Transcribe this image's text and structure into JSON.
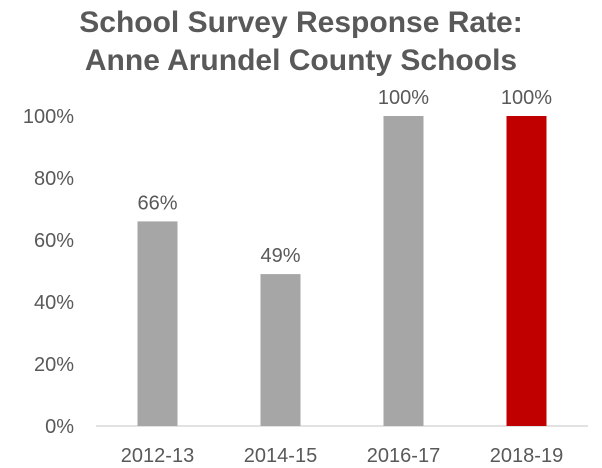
{
  "chart_data": {
    "type": "bar",
    "title": "School Survey Response Rate:",
    "subtitle": "Anne Arundel County Schools",
    "xlabel": "",
    "ylabel": "",
    "categories": [
      "2012-13",
      "2014-15",
      "2016-17",
      "2018-19"
    ],
    "values": [
      66,
      49,
      100,
      100
    ],
    "data_labels": [
      "66%",
      "49%",
      "100%",
      "100%"
    ],
    "ylim": [
      0,
      100
    ],
    "yticks": [
      0,
      20,
      40,
      60,
      80,
      100
    ],
    "ytick_labels": [
      "0%",
      "20%",
      "40%",
      "60%",
      "80%",
      "100%"
    ],
    "grid": false,
    "legend": "none",
    "colors": {
      "default_bar": "#a6a6a6",
      "highlight_bar": "#c00000",
      "text": "#595959",
      "axis": "#d9d9d9"
    },
    "highlight_index": 3
  }
}
